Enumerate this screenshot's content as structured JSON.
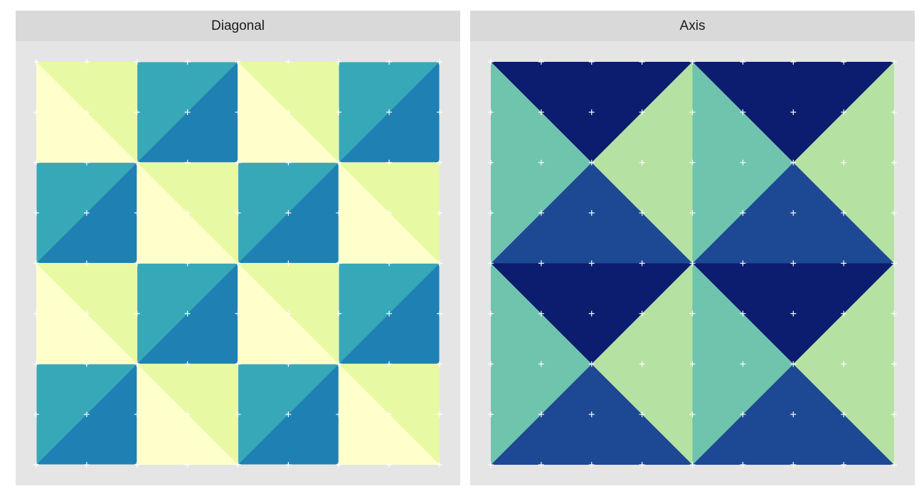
{
  "figure": {
    "background": "#ffffff",
    "panel_background": "#e5e5e5",
    "strip_background": "#d9d9d9"
  },
  "chart_data": [
    {
      "type": "tile",
      "title": "Diagonal",
      "grid": true,
      "grid_color": "#ffffff",
      "rows": 4,
      "cols": 4,
      "xlim": [
        0,
        4
      ],
      "ylim": [
        0,
        4
      ],
      "colors": {
        "light_fill": "#ffffcc",
        "light_alt": "#e8f9a3",
        "dark_fill": "#1f80b3",
        "dark_alt": "#37a8b8"
      },
      "tile_pattern": [
        [
          "light",
          "dark",
          "light",
          "dark"
        ],
        [
          "dark",
          "light",
          "dark",
          "light"
        ],
        [
          "light",
          "dark",
          "light",
          "dark"
        ],
        [
          "dark",
          "light",
          "dark",
          "light"
        ]
      ]
    },
    {
      "type": "tile",
      "title": "Axis",
      "grid": true,
      "grid_color": "#ffffff",
      "rows": 2,
      "cols": 2,
      "xlim": [
        0,
        2
      ],
      "ylim": [
        0,
        2
      ],
      "colors": {
        "top": "#0c1c6e",
        "bottom": "#1d4994",
        "left": "#6fc4ad",
        "right": "#b5e2a3"
      }
    }
  ]
}
